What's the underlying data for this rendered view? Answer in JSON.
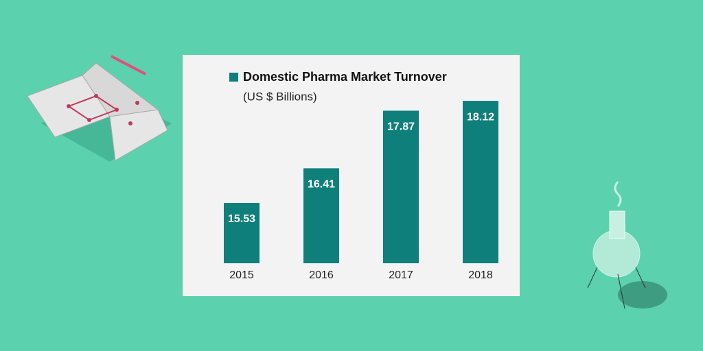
{
  "chart_data": {
    "type": "bar",
    "title": "Domestic Pharma Market Turnover",
    "subtitle": "(US $ Billions)",
    "categories": [
      "2015",
      "2016",
      "2017",
      "2018"
    ],
    "values": [
      15.53,
      16.41,
      17.87,
      18.12
    ],
    "color": "#0e7f7b",
    "ylim": [
      14,
      19
    ]
  }
}
